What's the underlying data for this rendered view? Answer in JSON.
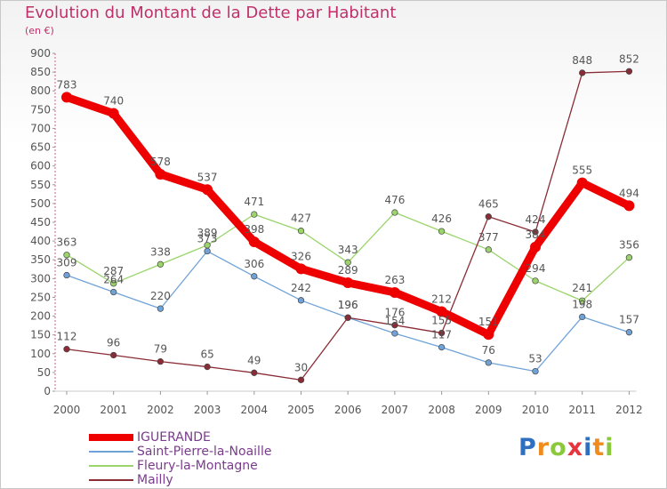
{
  "title": "Evolution du Montant de la Dette par Habitant",
  "unit": "(en €)",
  "logo": {
    "text": "Proxiti",
    "letter_colors": [
      "#2f6fbf",
      "#f08c1c",
      "#8bc83c",
      "#e8343c",
      "#2f6fbf",
      "#f08c1c",
      "#8bc83c"
    ]
  },
  "chart_data": {
    "type": "line",
    "categories": [
      "2000",
      "2001",
      "2002",
      "2003",
      "2004",
      "2005",
      "2006",
      "2007",
      "2008",
      "2009",
      "2010",
      "2011",
      "2012"
    ],
    "ylim": [
      0,
      900
    ],
    "yticks": [
      0,
      50,
      100,
      150,
      200,
      250,
      300,
      350,
      400,
      450,
      500,
      550,
      600,
      650,
      700,
      750,
      800,
      850,
      900
    ],
    "grid": false,
    "legend_position": "bottom-left",
    "series": [
      {
        "name": "Saint-Pierre-la-Noaille",
        "color": "#6fa3d8",
        "values": [
          309,
          264,
          220,
          373,
          306,
          242,
          196,
          154,
          117,
          76,
          53,
          198,
          157
        ],
        "labels": [
          "309",
          "264",
          "220",
          "373",
          "306",
          "242",
          "196",
          "154",
          "117",
          "76",
          "53",
          "198",
          "157"
        ]
      },
      {
        "name": "Fleury-la-Montagne",
        "color": "#9ad46a",
        "values": [
          363,
          287,
          338,
          389,
          471,
          427,
          343,
          476,
          426,
          377,
          294,
          241,
          356
        ],
        "labels": [
          "363",
          "287",
          "338",
          "389",
          "471",
          "427",
          "343",
          "476",
          "426",
          "377",
          "294",
          "241",
          "356"
        ]
      },
      {
        "name": "Mailly",
        "color": "#8a2c36",
        "values": [
          112,
          96,
          79,
          65,
          49,
          30,
          196,
          176,
          155,
          465,
          424,
          848,
          852
        ],
        "labels": [
          "112",
          "96",
          "79",
          "65",
          "49",
          "30",
          "196",
          "176",
          "155",
          "465",
          "424",
          "848",
          "852"
        ]
      },
      {
        "name": "IGUERANDE",
        "color": "#ee0000",
        "values": [
          783,
          740,
          578,
          537,
          398,
          326,
          289,
          263,
          212,
          151,
          384,
          555,
          494
        ],
        "labels": [
          "783",
          "740",
          "578",
          "537",
          "398",
          "326",
          "289",
          "263",
          "212",
          "151",
          "384",
          "555",
          "494"
        ]
      }
    ]
  }
}
